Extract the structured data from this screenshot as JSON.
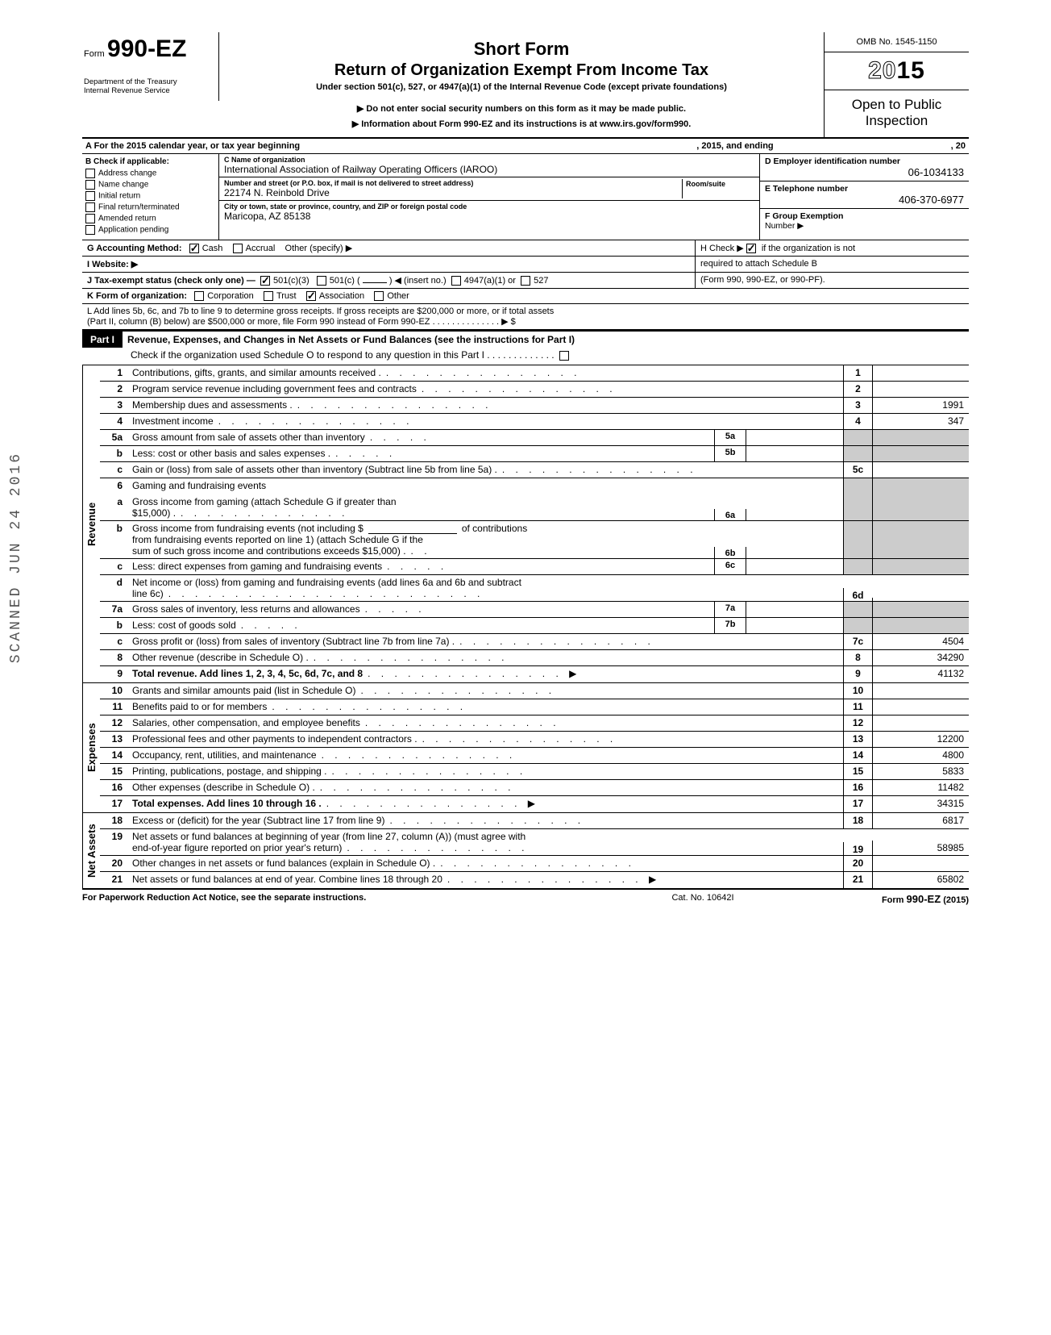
{
  "header": {
    "omb": "OMB No. 1545-1150",
    "form_label": "Form",
    "form_number": "990-EZ",
    "year_outline": "20",
    "year_solid": "15",
    "title1": "Short Form",
    "title2": "Return of Organization Exempt From Income Tax",
    "sub": "Under section 501(c), 527, or 4947(a)(1) of the Internal Revenue Code (except private foundations)",
    "note1": "▶ Do not enter social security numbers on this form as it may be made public.",
    "note2": "▶ Information about Form 990-EZ and its instructions is at www.irs.gov/form990.",
    "open1": "Open to Public",
    "open2": "Inspection",
    "dept1": "Department of the Treasury",
    "dept2": "Internal Revenue Service"
  },
  "rowA": {
    "label_left": "A  For the 2015 calendar year, or tax year beginning",
    "label_mid": ", 2015, and ending",
    "label_right": ", 20"
  },
  "sectionB": {
    "b_label": "B  Check if applicable:",
    "checks": {
      "address": "Address change",
      "name": "Name change",
      "initial": "Initial return",
      "final": "Final return/terminated",
      "amended": "Amended return",
      "app": "Application pending"
    },
    "c_label": "C  Name of organization",
    "c_val": "International Association of Railway Operating Officers (IAROO)",
    "street_label": "Number and street (or P.O. box, if mail is not delivered to street address)",
    "street_val": "22174 N. Reinbold Drive",
    "room_label": "Room/suite",
    "city_label": "City or town, state or province, country, and ZIP or foreign postal code",
    "city_val": "Maricopa, AZ 85138",
    "d_label": "D Employer identification number",
    "d_val": "06-1034133",
    "e_label": "E Telephone number",
    "e_val": "406-370-6977",
    "f_label": "F Group Exemption",
    "f_label2": "Number ▶"
  },
  "rowG": {
    "g_label": "G  Accounting Method:",
    "cash": "Cash",
    "accrual": "Accrual",
    "other": "Other (specify) ▶",
    "h_label": "H  Check ▶",
    "h_text": "if the organization is not",
    "h_text2": "required to attach Schedule B",
    "h_text3": "(Form 990, 990-EZ, or 990-PF)."
  },
  "rowI": {
    "label": "I  Website: ▶"
  },
  "rowJ": {
    "label": "J  Tax-exempt status (check only one) —",
    "c3": "501(c)(3)",
    "c": "501(c) (",
    "insert": ") ◀ (insert no.)",
    "a1": "4947(a)(1) or",
    "527": "527"
  },
  "rowK": {
    "label": "K  Form of organization:",
    "corp": "Corporation",
    "trust": "Trust",
    "assoc": "Association",
    "other": "Other"
  },
  "rowL": {
    "l1": "L  Add lines 5b, 6c, and 7b to line 9 to determine gross receipts. If gross receipts are $200,000 or more, or if total assets",
    "l2": "(Part II, column (B) below) are $500,000 or more, file Form 990 instead of Form 990-EZ .   .   .   .   .   .   .   .   .   .   .   .   .   .  ▶   $"
  },
  "partI": {
    "tag": "Part I",
    "title": "Revenue, Expenses, and Changes in Net Assets or Fund Balances (see the instructions for Part I)",
    "sched": "Check if the organization used Schedule O to respond to any question in this Part I .   .   .   .   .   .   .   .   .   .   .   .   ."
  },
  "sections": {
    "revenue": "Revenue",
    "expenses": "Expenses",
    "netassets": "Net Assets"
  },
  "lines": {
    "1": {
      "n": "1",
      "t": "Contributions, gifts, grants, and similar amounts received .",
      "rn": "1",
      "rv": ""
    },
    "2": {
      "n": "2",
      "t": "Program service revenue including government fees and contracts",
      "rn": "2",
      "rv": ""
    },
    "3": {
      "n": "3",
      "t": "Membership dues and assessments .",
      "rn": "3",
      "rv": "1991"
    },
    "4": {
      "n": "4",
      "t": "Investment income",
      "rn": "4",
      "rv": "347"
    },
    "5a": {
      "n": "5a",
      "t": "Gross amount from sale of assets other than inventory",
      "sb": "5a"
    },
    "5b": {
      "n": "b",
      "t": "Less: cost or other basis and sales expenses .",
      "sb": "5b"
    },
    "5c": {
      "n": "c",
      "t": "Gain or (loss) from sale of assets other than inventory (Subtract line 5b from line 5a) .",
      "rn": "5c",
      "rv": ""
    },
    "6": {
      "n": "6",
      "t": "Gaming and fundraising events"
    },
    "6a": {
      "n": "a",
      "t": "Gross income from gaming (attach Schedule G if greater than",
      "t2": "$15,000) .",
      "sb": "6a"
    },
    "6b": {
      "n": "b",
      "t": "Gross income from fundraising events (not including  $",
      "t_after": "of contributions",
      "t2": "from fundraising events reported on line 1) (attach Schedule G if the",
      "t3": "sum of such gross income and contributions exceeds $15,000) .",
      "sb": "6b"
    },
    "6c": {
      "n": "c",
      "t": "Less: direct expenses from gaming and fundraising events",
      "sb": "6c"
    },
    "6d": {
      "n": "d",
      "t": "Net income or (loss) from gaming and fundraising events (add lines 6a and 6b and subtract",
      "t2": "line 6c)",
      "rn": "6d",
      "rv": ""
    },
    "7a": {
      "n": "7a",
      "t": "Gross sales of inventory, less returns and allowances",
      "sb": "7a"
    },
    "7b": {
      "n": "b",
      "t": "Less: cost of goods sold",
      "sb": "7b"
    },
    "7c": {
      "n": "c",
      "t": "Gross profit or (loss) from sales of inventory (Subtract line 7b from line 7a) .",
      "rn": "7c",
      "rv": "4504"
    },
    "8": {
      "n": "8",
      "t": "Other revenue (describe in Schedule O) .",
      "rn": "8",
      "rv": "34290"
    },
    "9": {
      "n": "9",
      "t": "Total revenue. Add lines 1, 2, 3, 4, 5c, 6d, 7c, and 8",
      "rn": "9",
      "rv": "41132",
      "bold": true,
      "arrow": true
    },
    "10": {
      "n": "10",
      "t": "Grants and similar amounts paid (list in Schedule O)",
      "rn": "10",
      "rv": ""
    },
    "11": {
      "n": "11",
      "t": "Benefits paid to or for members",
      "rn": "11",
      "rv": ""
    },
    "12": {
      "n": "12",
      "t": "Salaries, other compensation, and employee benefits",
      "rn": "12",
      "rv": ""
    },
    "13": {
      "n": "13",
      "t": "Professional fees and other payments to independent contractors .",
      "rn": "13",
      "rv": "12200"
    },
    "14": {
      "n": "14",
      "t": "Occupancy, rent, utilities, and maintenance",
      "rn": "14",
      "rv": "4800"
    },
    "15": {
      "n": "15",
      "t": "Printing, publications, postage, and shipping .",
      "rn": "15",
      "rv": "5833"
    },
    "16": {
      "n": "16",
      "t": "Other expenses (describe in Schedule O) .",
      "rn": "16",
      "rv": "11482"
    },
    "17": {
      "n": "17",
      "t": "Total expenses. Add lines 10 through 16 .",
      "rn": "17",
      "rv": "34315",
      "bold": true,
      "arrow": true
    },
    "18": {
      "n": "18",
      "t": "Excess or (deficit) for the year (Subtract line 17 from line 9)",
      "rn": "18",
      "rv": "6817"
    },
    "19": {
      "n": "19",
      "t": "Net assets or fund balances at beginning of year (from line 27, column (A)) (must agree with",
      "t2": "end-of-year figure reported on prior year's return)",
      "rn": "19",
      "rv": "58985"
    },
    "20": {
      "n": "20",
      "t": "Other changes in net assets or fund balances (explain in Schedule O) .",
      "rn": "20",
      "rv": ""
    },
    "21": {
      "n": "21",
      "t": "Net assets or fund balances at end of year. Combine lines 18 through 20",
      "rn": "21",
      "rv": "65802",
      "arrow": true
    }
  },
  "footer": {
    "left": "For Paperwork Reduction Act Notice, see the separate instructions.",
    "center": "Cat. No. 10642I",
    "right_pre": "Form ",
    "right_bold": "990-EZ",
    "right_post": " (2015)"
  },
  "stamp": "SCANNED JUN 24 2016"
}
